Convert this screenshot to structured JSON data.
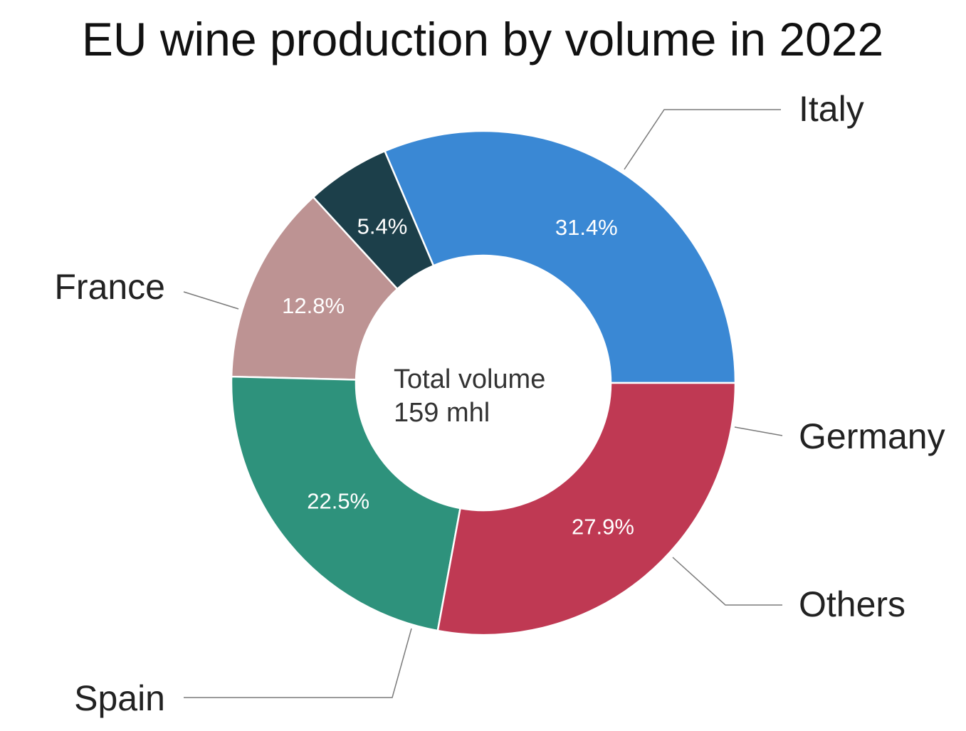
{
  "chart_data": {
    "type": "pie",
    "title": "EU wine production by volume in 2022",
    "center_label": {
      "line1": "Total volume",
      "line2": "159 mhl"
    },
    "slices": [
      {
        "label": "Italy",
        "value": 31.4,
        "display": "31.4%",
        "color": "#3a88d4"
      },
      {
        "label": "Germany",
        "value": 5.4,
        "display": "5.4%",
        "color": "#1c3f4a"
      },
      {
        "label": "Others",
        "value": 12.8,
        "display": "12.8%",
        "color": "#bd9393"
      },
      {
        "label": "Spain",
        "value": 22.5,
        "display": "22.5%",
        "color": "#2e927c"
      },
      {
        "label": "France",
        "value": 27.9,
        "display": "27.9%",
        "color": "#bf3953"
      }
    ]
  }
}
